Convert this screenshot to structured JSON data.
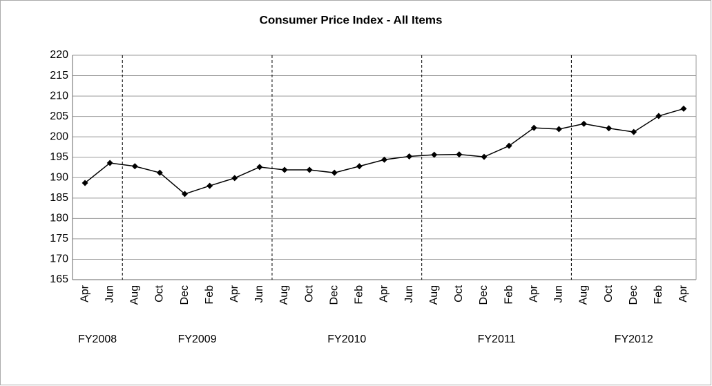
{
  "chart_data": {
    "type": "line",
    "title": "Consumer Price Index - All Items",
    "categories": [
      "Apr",
      "Jun",
      "Aug",
      "Oct",
      "Dec",
      "Feb",
      "Apr",
      "Jun",
      "Aug",
      "Oct",
      "Dec",
      "Feb",
      "Apr",
      "Jun",
      "Aug",
      "Oct",
      "Dec",
      "Feb",
      "Apr",
      "Jun",
      "Aug",
      "Oct",
      "Dec",
      "Feb",
      "Apr"
    ],
    "values": [
      188.7,
      193.6,
      192.8,
      191.2,
      186.0,
      188.0,
      189.9,
      192.6,
      191.9,
      191.9,
      191.2,
      192.8,
      194.4,
      195.2,
      195.6,
      195.7,
      195.1,
      197.8,
      202.2,
      201.9,
      203.2,
      202.1,
      201.2,
      205.1,
      206.9
    ],
    "color": "#000000",
    "groups": [
      "FY2008",
      "FY2009",
      "FY2010",
      "FY2011",
      "FY2012"
    ],
    "ylim": [
      165,
      220
    ],
    "yticks": [
      165,
      170,
      175,
      180,
      185,
      190,
      195,
      200,
      205,
      210,
      215,
      220
    ],
    "grid": true
  }
}
